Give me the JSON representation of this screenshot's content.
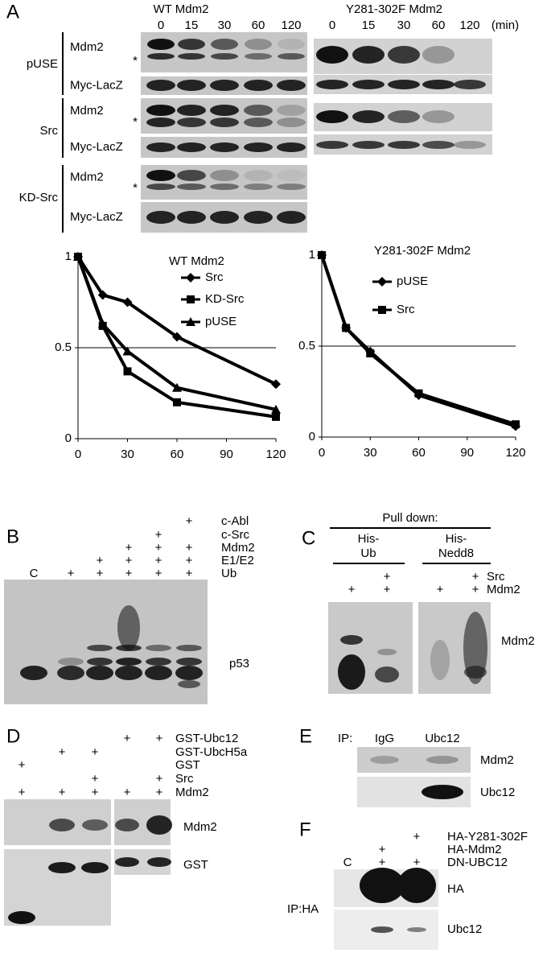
{
  "panel_a": {
    "label": "A",
    "wt_title": "WT Mdm2",
    "wt_lanes": [
      "0",
      "15",
      "30",
      "60",
      "120"
    ],
    "mut_title": "Y281-302F Mdm2",
    "mut_lanes": [
      "0",
      "15",
      "30",
      "60",
      "120"
    ],
    "unit": "(min)",
    "groups": [
      {
        "name": "pUSE",
        "rows": [
          "Mdm2",
          "Myc-LacZ"
        ],
        "asterisk": "*"
      },
      {
        "name": "Src",
        "rows": [
          "Mdm2",
          "Myc-LacZ"
        ],
        "asterisk": "*"
      },
      {
        "name": "KD-Src",
        "rows": [
          "Mdm2",
          "Myc-LacZ"
        ],
        "asterisk": "*"
      }
    ]
  },
  "chart_data": [
    {
      "type": "line",
      "title": "WT Mdm2",
      "x": [
        0,
        15,
        30,
        60,
        120
      ],
      "xlim": [
        0,
        120
      ],
      "xticks": [
        0,
        30,
        60,
        90,
        120
      ],
      "ylim": [
        0,
        1
      ],
      "yticks": [
        0,
        0.5,
        1
      ],
      "hline": 0.5,
      "series": [
        {
          "name": "Src",
          "color": "#000",
          "marker": "diamond",
          "values": [
            1,
            0.79,
            0.75,
            0.56,
            0.3
          ]
        },
        {
          "name": "KD-Src",
          "color": "#000",
          "marker": "square",
          "values": [
            1,
            0.62,
            0.37,
            0.2,
            0.12
          ]
        },
        {
          "name": "pUSE",
          "color": "#000",
          "marker": "triangle",
          "values": [
            1,
            0.63,
            0.48,
            0.28,
            0.16
          ]
        }
      ]
    },
    {
      "type": "line",
      "title": "Y281-302F Mdm2",
      "x": [
        0,
        15,
        30,
        60,
        120
      ],
      "xlim": [
        0,
        120
      ],
      "xticks": [
        0,
        30,
        60,
        90,
        120
      ],
      "ylim": [
        0,
        1
      ],
      "yticks": [
        0,
        0.5,
        1
      ],
      "hline": 0.5,
      "series": [
        {
          "name": "pUSE",
          "color": "#000",
          "marker": "diamond",
          "values": [
            1,
            0.6,
            0.47,
            0.23,
            0.06
          ]
        },
        {
          "name": "Src",
          "color": "#000",
          "marker": "square",
          "values": [
            1,
            0.6,
            0.46,
            0.24,
            0.07
          ]
        }
      ]
    }
  ],
  "panel_b": {
    "label": "B",
    "rows": [
      {
        "label": "c-Abl",
        "marks": [
          null,
          null,
          null,
          null,
          null,
          "+"
        ]
      },
      {
        "label": "c-Src",
        "marks": [
          null,
          null,
          null,
          null,
          "+",
          null
        ]
      },
      {
        "label": "Mdm2",
        "marks": [
          null,
          null,
          null,
          "+",
          "+",
          "+"
        ]
      },
      {
        "label": "E1/E2",
        "marks": [
          null,
          null,
          "+",
          "+",
          "+",
          "+"
        ]
      },
      {
        "label": "Ub",
        "marks": [
          "C",
          "+",
          "+",
          "+",
          "+",
          "+"
        ]
      }
    ],
    "band": "p53"
  },
  "panel_c": {
    "label": "C",
    "header": "Pull down:",
    "groups": [
      [
        "His-",
        "Ub"
      ],
      [
        "His-",
        "Nedd8"
      ]
    ],
    "rows": [
      {
        "label": "Src",
        "marks": [
          null,
          "+",
          null,
          "+"
        ]
      },
      {
        "label": "Mdm2",
        "marks": [
          "+",
          "+",
          "+",
          "+"
        ]
      }
    ],
    "band": "Mdm2"
  },
  "panel_d": {
    "label": "D",
    "rows": [
      {
        "label": "GST-Ubc12",
        "marks": [
          null,
          null,
          null,
          "+",
          "+"
        ]
      },
      {
        "label": "GST-UbcH5a",
        "marks": [
          null,
          "+",
          "+",
          null,
          null
        ]
      },
      {
        "label": "GST",
        "marks": [
          "+",
          null,
          null,
          null,
          null
        ]
      },
      {
        "label": "Src",
        "marks": [
          null,
          null,
          "+",
          null,
          "+"
        ]
      },
      {
        "label": "Mdm2",
        "marks": [
          "+",
          "+",
          "+",
          "+",
          "+"
        ]
      }
    ],
    "bands": [
      "Mdm2",
      "GST"
    ]
  },
  "panel_e": {
    "label": "E",
    "ip": "IP:",
    "lanes": [
      "IgG",
      "Ubc12"
    ],
    "bands": [
      "Mdm2",
      "Ubc12"
    ]
  },
  "panel_f": {
    "label": "F",
    "rows": [
      {
        "label": "HA-Y281-302F",
        "marks": [
          null,
          null,
          "+"
        ]
      },
      {
        "label": "HA-Mdm2",
        "marks": [
          null,
          "+",
          null
        ]
      },
      {
        "label": "DN-UBC12",
        "marks": [
          "C",
          "+",
          "+"
        ]
      }
    ],
    "ip": "IP:HA",
    "bands": [
      "HA",
      "Ubc12"
    ]
  }
}
